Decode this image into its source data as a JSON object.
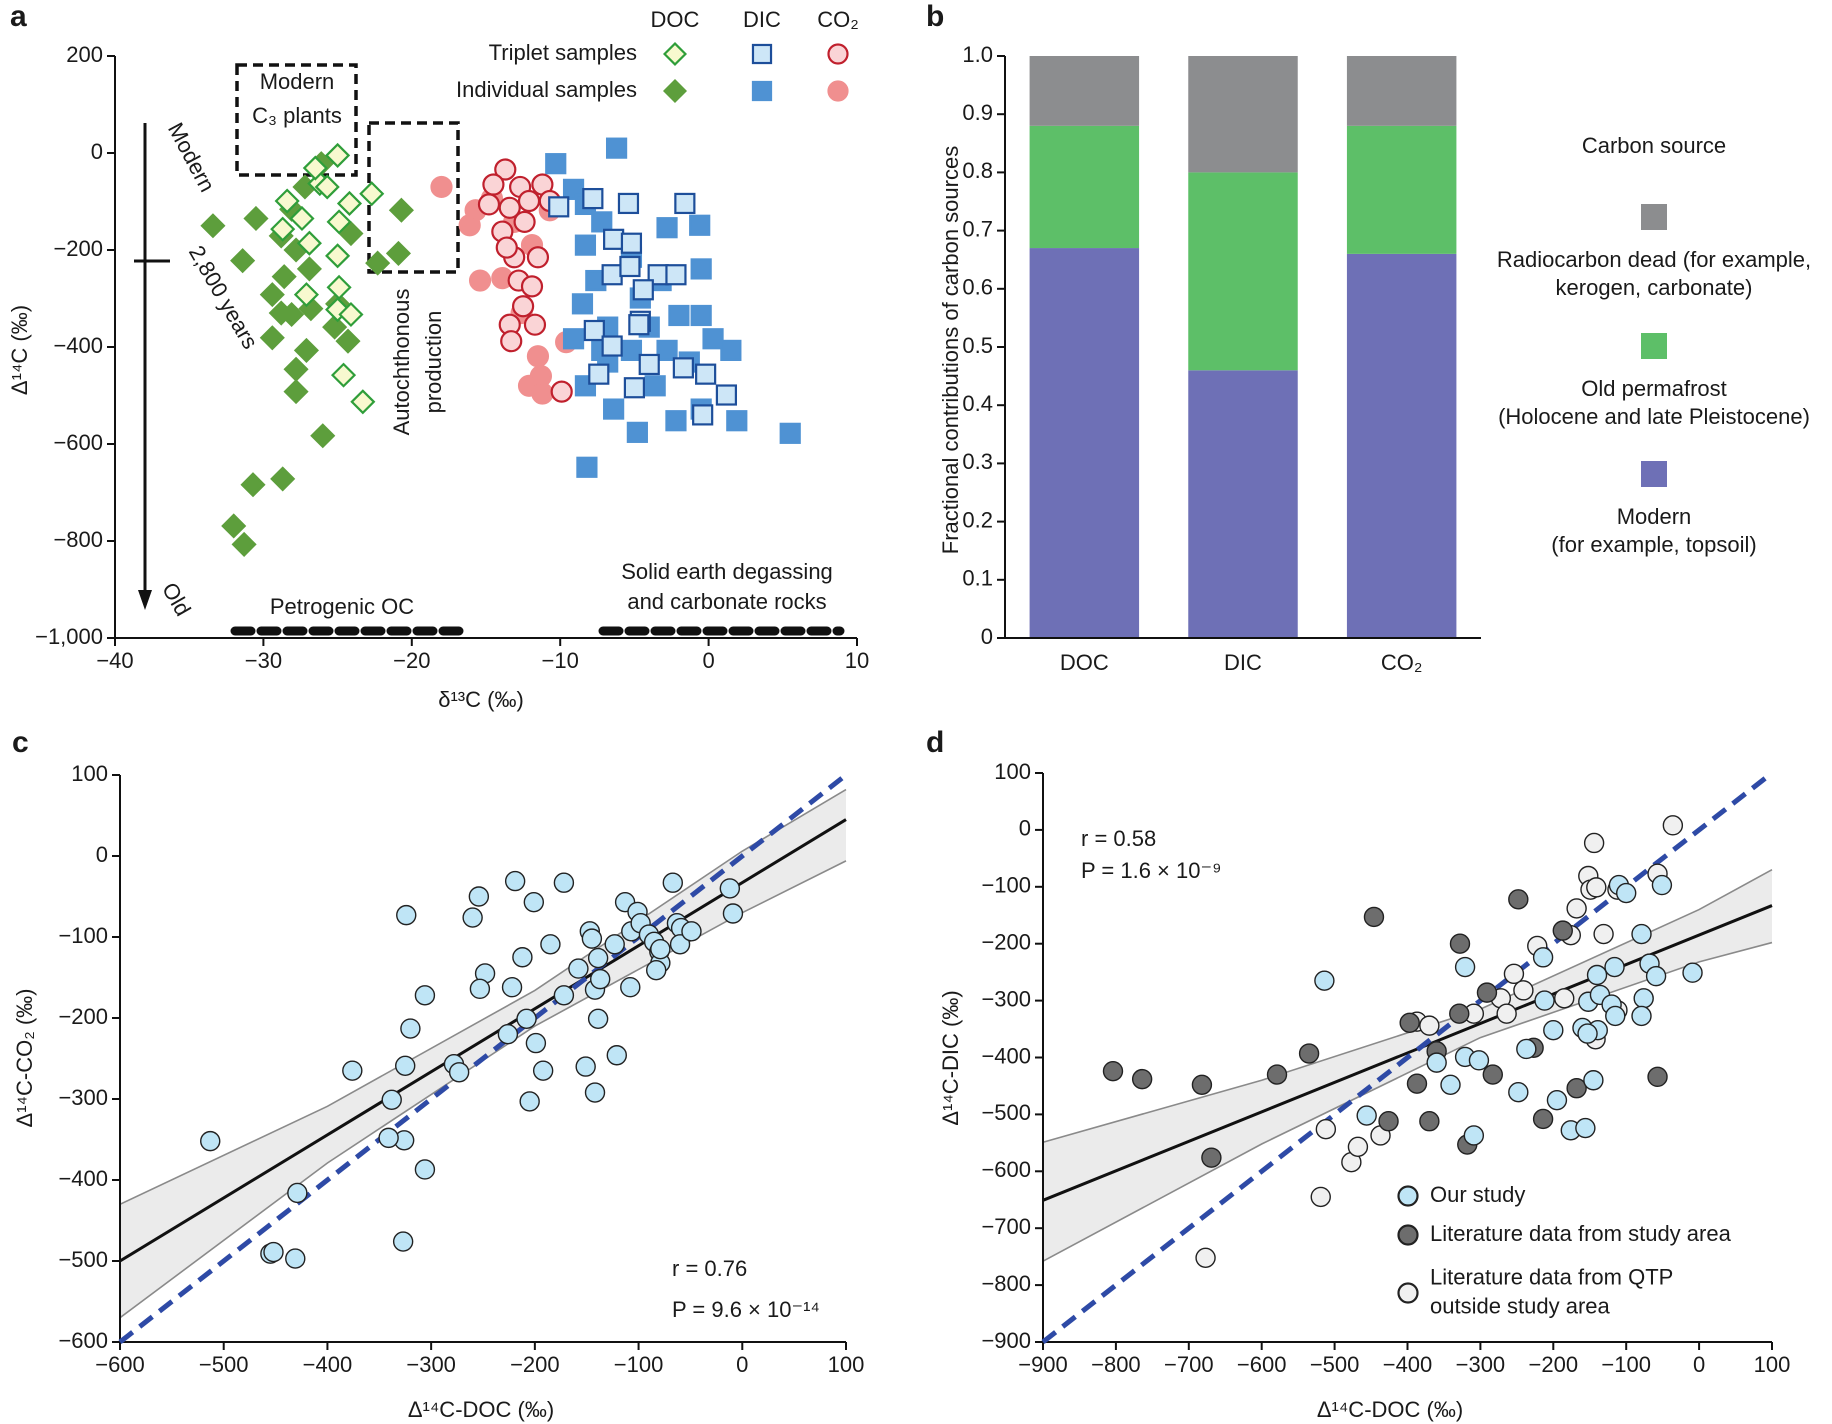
{
  "chart_data": [
    {
      "type": "scatter",
      "panel_label": "a",
      "x_label": "δ¹³C (‰)",
      "y_label": "Δ¹⁴C (‰)",
      "xlim": [
        -40,
        10
      ],
      "ylim": [
        -1000,
        200
      ],
      "xticks": [
        {
          "value": -40,
          "label": "−40"
        },
        {
          "value": -30,
          "label": "−30"
        },
        {
          "value": -20,
          "label": "−20"
        },
        {
          "value": -10,
          "label": "−10"
        },
        0,
        10
      ],
      "yticks": [
        {
          "value": -1000,
          "label": "−1,000"
        },
        {
          "value": -800,
          "label": "−800"
        },
        {
          "value": -600,
          "label": "−600"
        },
        {
          "value": -400,
          "label": "−400"
        },
        {
          "value": -200,
          "label": "−200"
        },
        0,
        200
      ],
      "legend": {
        "columns": [
          "DOC",
          "DIC",
          "CO₂"
        ],
        "rows": [
          "Triplet samples",
          "Individual samples"
        ]
      },
      "annotations": [
        "Modern\nC₃ plants",
        "Autochthonous\nproduction",
        "Modern",
        "2,800 years",
        "Old",
        "Petrogenic OC",
        "Solid earth degassing\nand carbonate rocks"
      ],
      "series": [
        {
          "marker": "diamond",
          "color": "#2f9e3a",
          "fill": "#f8f9cf",
          "x": [
            -25.0,
            -26.2,
            -28.4,
            -27.4,
            -26.9,
            -24.9,
            -24.2,
            -22.7,
            -25.0,
            -27.1,
            -24.9,
            -25.0,
            -24.1,
            -24.6,
            -23.3,
            -26.5,
            -25.7,
            -28.7
          ],
          "y": [
            -5,
            -63,
            -99,
            -135,
            -186,
            -142,
            -104,
            -84,
            -212,
            -292,
            -277,
            -323,
            -333,
            -458,
            -513,
            -31,
            -70,
            -157
          ]
        },
        {
          "marker": "square",
          "color": "#1d4e9a",
          "fill": "#cde6f7",
          "x": [
            -10.1,
            -7.8,
            -5.4,
            -6.4,
            -5.2,
            -6.5,
            -5.3,
            -3.4,
            -2.2,
            -4.4,
            -4.6,
            -7.7,
            -6.5,
            -4.7,
            -4.0,
            -1.7,
            -0.2,
            -7.4,
            -5.0,
            -0.4,
            1.2,
            -1.6
          ],
          "y": [
            -111,
            -94,
            -104,
            -178,
            -186,
            -251,
            -234,
            -251,
            -251,
            -282,
            -347,
            -366,
            -398,
            -354,
            -436,
            -443,
            -456,
            -456,
            -484,
            -540,
            -499,
            -104
          ]
        },
        {
          "marker": "circle",
          "color": "#c0202d",
          "fill": "#fad4d6",
          "x": [
            -13.7,
            -14.5,
            -12.7,
            -11.2,
            -13.4,
            -12.1,
            -10.7,
            -12.4,
            -13.9,
            -11.5,
            -13.1,
            -12.8,
            -11.9,
            -12.5,
            -13.4,
            -11.7,
            -13.3,
            -9.9,
            -14.8,
            -13.6
          ],
          "y": [
            -34,
            -65,
            -70,
            -65,
            -113,
            -99,
            -99,
            -142,
            -162,
            -215,
            -215,
            -263,
            -275,
            -316,
            -354,
            -354,
            -388,
            -492,
            -106,
            -195
          ]
        },
        {
          "marker": "diamond",
          "color": "#5d9e3c",
          "fill": "#5d9e3c",
          "x": [
            -33.4,
            -30.5,
            -28.1,
            -31.4,
            -28.8,
            -27.8,
            -28.6,
            -29.4,
            -28.8,
            -29.4,
            -26.8,
            -25.0,
            -25.2,
            -24.3,
            -27.1,
            -27.8,
            -27.8,
            -26.0,
            -30.7,
            -28.7,
            -32.0,
            -31.3,
            -20.7,
            -20.9,
            -22.3,
            -27.2,
            -26.1,
            -26.9,
            -24.1,
            -28.1
          ],
          "y": [
            -150,
            -135,
            -116,
            -222,
            -171,
            -200,
            -255,
            -292,
            -330,
            -381,
            -321,
            -311,
            -359,
            -388,
            -407,
            -446,
            -492,
            -583,
            -684,
            -672,
            -769,
            -807,
            -118,
            -207,
            -227,
            -70,
            -22,
            -239,
            -166,
            -333
          ]
        },
        {
          "marker": "square",
          "color": "#4f92d3",
          "fill": "#4f92d3",
          "x": [
            -6.2,
            -10.3,
            -9.1,
            -8.3,
            -7.2,
            -8.3,
            -7.6,
            -8.5,
            -6.8,
            -7.2,
            -8.3,
            -6.4,
            -4.8,
            -2.2,
            -0.5,
            1.9,
            5.5,
            -8.2,
            -5.2,
            -2.8,
            -0.6,
            -4.0,
            -2.8,
            -1.3,
            0.3,
            -4.6,
            -3.6,
            -6.8,
            -2.0,
            -0.5,
            1.5,
            -5.2,
            -9.1,
            -0.5,
            -3.2
          ],
          "y": [
            10,
            -22,
            -75,
            -106,
            -142,
            -190,
            -263,
            -311,
            -359,
            -407,
            -480,
            -528,
            -576,
            -552,
            -528,
            -552,
            -578,
            -648,
            -215,
            -154,
            -149,
            -359,
            -407,
            -431,
            -383,
            -299,
            -480,
            -431,
            -335,
            -335,
            -407,
            -407,
            -383,
            -239,
            -263
          ]
        },
        {
          "marker": "circle",
          "color": "#f08f8f",
          "fill": "#f08f8f",
          "x": [
            -18.0,
            -16.1,
            -15.4,
            -13.9,
            -12.6,
            -11.5,
            -9.6,
            -11.3,
            -12.1,
            -11.2,
            -15.7,
            -13.1,
            -14.6,
            -10.7,
            -11.9
          ],
          "y": [
            -70,
            -149,
            -263,
            -258,
            -330,
            -419,
            -390,
            -460,
            -480,
            -496,
            -118,
            -142,
            -94,
            -118,
            -190
          ]
        }
      ]
    },
    {
      "type": "stacked_bar",
      "panel_label": "b",
      "y_label": "Fractional contributions of carbon sources",
      "categories": [
        "DOC",
        "DIC",
        "CO₂"
      ],
      "ylim": [
        0,
        1
      ],
      "yticks": [
        0,
        0.1,
        0.2,
        0.3,
        0.4,
        0.5,
        0.6,
        0.7,
        0.8,
        0.9,
        {
          "value": 1,
          "label": "1.0"
        }
      ],
      "legend_title": "Carbon source",
      "legend": "right",
      "series": [
        {
          "name": "Modern\n(for example, topsoil)",
          "color": "#6e70b6",
          "values": [
            0.67,
            0.46,
            0.66
          ]
        },
        {
          "name": "Old permafrost\n(Holocene and late Pleistocene)",
          "color": "#5dbf68",
          "values": [
            0.21,
            0.34,
            0.22
          ]
        },
        {
          "name": "Radiocarbon dead (for example,\nkerogen, carbonate)",
          "color": "#8c8d8f",
          "values": [
            0.12,
            0.2,
            0.12
          ]
        }
      ]
    },
    {
      "type": "scatter",
      "panel_label": "c",
      "x_label": "Δ¹⁴C-DOC (‰)",
      "y_label": "Δ¹⁴C-CO₂ (‰)",
      "xlim": [
        -600,
        100
      ],
      "ylim": [
        -600,
        100
      ],
      "xticks": [
        {
          "value": -600,
          "label": "−600"
        },
        {
          "value": -500,
          "label": "−500"
        },
        {
          "value": -400,
          "label": "−400"
        },
        {
          "value": -300,
          "label": "−300"
        },
        {
          "value": -200,
          "label": "−200"
        },
        {
          "value": -100,
          "label": "−100"
        },
        0,
        100
      ],
      "yticks": [
        {
          "value": -600,
          "label": "−600"
        },
        {
          "value": -500,
          "label": "−500"
        },
        {
          "value": -400,
          "label": "−400"
        },
        {
          "value": -300,
          "label": "−300"
        },
        {
          "value": -200,
          "label": "−200"
        },
        {
          "value": -100,
          "label": "−100"
        },
        0,
        100
      ],
      "annotations": [
        "r = 0.76",
        "P = 9.6 × 10⁻¹⁴"
      ],
      "band": {
        "color": "#ebebeb",
        "edge": "#8a8a8a",
        "x": [
          -600,
          -400,
          -200,
          0,
          100
        ],
        "upper": [
          -430,
          -309,
          -166,
          6,
          82
        ],
        "lower": [
          -570,
          -379,
          -210,
          -70,
          -6
        ]
      },
      "lines": [
        {
          "color": "#111111",
          "x": [
            -600,
            100
          ],
          "y": [
            -500,
            45
          ]
        },
        {
          "color": "#2e4aa6",
          "style": "dashed",
          "x": [
            -600,
            100
          ],
          "y": [
            -600,
            100
          ]
        }
      ],
      "series": [
        {
          "color": "#222222",
          "fill": "#bfe5f6",
          "x": [
            -513,
            -455,
            -452,
            -431,
            -429,
            -324,
            -320,
            -325,
            -326,
            -327,
            -338,
            -341,
            -306,
            -306,
            -376,
            -278,
            -273,
            -254,
            -248,
            -253,
            -260,
            -219,
            -201,
            -185,
            -212,
            -222,
            -226,
            -208,
            -205,
            -192,
            -199,
            -172,
            -172,
            -158,
            -142,
            -151,
            -142,
            -147,
            -145,
            -139,
            -137,
            -139,
            -123,
            -121,
            -113,
            -107,
            -108,
            -101,
            -98,
            -90,
            -85,
            -80,
            -79,
            -67,
            -83,
            -79,
            -63,
            -59,
            -60,
            -49,
            -12,
            -9
          ],
          "y": [
            -352,
            -491,
            -489,
            -497,
            -416,
            -73,
            -213,
            -259,
            -351,
            -476,
            -301,
            -348,
            -172,
            -387,
            -265,
            -257,
            -267,
            -50,
            -145,
            -164,
            -76,
            -31,
            -57,
            -109,
            -125,
            -162,
            -220,
            -201,
            -303,
            -265,
            -231,
            -33,
            -172,
            -139,
            -165,
            -260,
            -292,
            -93,
            -102,
            -126,
            -152,
            -201,
            -109,
            -246,
            -57,
            -93,
            -162,
            -69,
            -83,
            -97,
            -106,
            -118,
            -132,
            -33,
            -141,
            -115,
            -83,
            -89,
            -109,
            -93,
            -40,
            -71
          ]
        }
      ]
    },
    {
      "type": "scatter",
      "panel_label": "d",
      "x_label": "Δ¹⁴C-DOC (‰)",
      "y_label": "Δ¹⁴C-DIC (‰)",
      "xlim": [
        -900,
        100
      ],
      "ylim": [
        -900,
        100
      ],
      "xticks": [
        {
          "value": -900,
          "label": "−900"
        },
        {
          "value": -800,
          "label": "−800"
        },
        {
          "value": -700,
          "label": "−700"
        },
        {
          "value": -600,
          "label": "−600"
        },
        {
          "value": -500,
          "label": "−500"
        },
        {
          "value": -400,
          "label": "−400"
        },
        {
          "value": -300,
          "label": "−300"
        },
        {
          "value": -200,
          "label": "−200"
        },
        {
          "value": -100,
          "label": "−100"
        },
        0,
        100
      ],
      "yticks": [
        {
          "value": -900,
          "label": "−900"
        },
        {
          "value": -800,
          "label": "−800"
        },
        {
          "value": -700,
          "label": "−700"
        },
        {
          "value": -600,
          "label": "−600"
        },
        {
          "value": -500,
          "label": "−500"
        },
        {
          "value": -400,
          "label": "−400"
        },
        {
          "value": -300,
          "label": "−300"
        },
        {
          "value": -200,
          "label": "−200"
        },
        {
          "value": -100,
          "label": "−100"
        },
        0,
        100
      ],
      "annotations": [
        "r = 0.58",
        "P = 1.6 × 10⁻⁹"
      ],
      "band": {
        "color": "#ebebeb",
        "edge": "#8a8a8a",
        "x": [
          -900,
          -600,
          -300,
          0,
          100
        ],
        "upper": [
          -549,
          -440,
          -315,
          -140,
          -70
        ],
        "lower": [
          -758,
          -552,
          -365,
          -232,
          -198
        ]
      },
      "lines": [
        {
          "color": "#111111",
          "x": [
            -900,
            100
          ],
          "y": [
            -651,
            -133
          ]
        },
        {
          "color": "#2e4aa6",
          "style": "dashed",
          "x": [
            -900,
            100
          ],
          "y": [
            -900,
            100
          ]
        }
      ],
      "series": [
        {
          "name": "Our study",
          "color": "#222222",
          "fill": "#bfe5f6",
          "x": [
            -514,
            -321,
            -309,
            -321,
            -341,
            -360,
            -302,
            -248,
            -237,
            -214,
            -212,
            -200,
            -195,
            -176,
            -156,
            -145,
            -160,
            -152,
            -140,
            -136,
            -139,
            -116,
            -120,
            -115,
            -110,
            -100,
            -79,
            -76,
            -79,
            -68,
            -59,
            -51,
            -9,
            -456,
            -153
          ],
          "y": [
            -265,
            -241,
            -537,
            -399,
            -448,
            -409,
            -405,
            -461,
            -385,
            -224,
            -300,
            -352,
            -475,
            -528,
            -524,
            -440,
            -348,
            -302,
            -255,
            -290,
            -352,
            -241,
            -307,
            -327,
            -97,
            -111,
            -183,
            -296,
            -327,
            -235,
            -257,
            -97,
            -251,
            -502,
            -358
          ]
        },
        {
          "name": "Literature data from study area",
          "color": "#222222",
          "fill": "#6d6d6d",
          "x": [
            -804,
            -764,
            -682,
            -669,
            -579,
            -535,
            -446,
            -397,
            -426,
            -387,
            -370,
            -328,
            -329,
            -318,
            -291,
            -283,
            -248,
            -227,
            -214,
            -168,
            -187,
            -57,
            -360
          ],
          "y": [
            -424,
            -438,
            -448,
            -576,
            -430,
            -393,
            -153,
            -339,
            -512,
            -446,
            -512,
            -200,
            -323,
            -553,
            -286,
            -430,
            -122,
            -383,
            -508,
            -454,
            -177,
            -434,
            -389
          ]
        },
        {
          "name": "Literature data from QTP\noutside study area",
          "color": "#222222",
          "fill": "#f0f0f0",
          "x": [
            -677,
            -519,
            -477,
            -468,
            -437,
            -512,
            -387,
            -370,
            -309,
            -272,
            -264,
            -254,
            -222,
            -185,
            -176,
            -168,
            -152,
            -149,
            -144,
            -141,
            -131,
            -112,
            -112,
            -142,
            -57,
            -36,
            -241
          ],
          "y": [
            -752,
            -645,
            -584,
            -557,
            -537,
            -526,
            -337,
            -344,
            -323,
            -296,
            -323,
            -253,
            -204,
            -296,
            -185,
            -138,
            -81,
            -105,
            -23,
            -101,
            -183,
            -105,
            -317,
            -368,
            -77,
            8,
            -282
          ]
        }
      ]
    }
  ]
}
